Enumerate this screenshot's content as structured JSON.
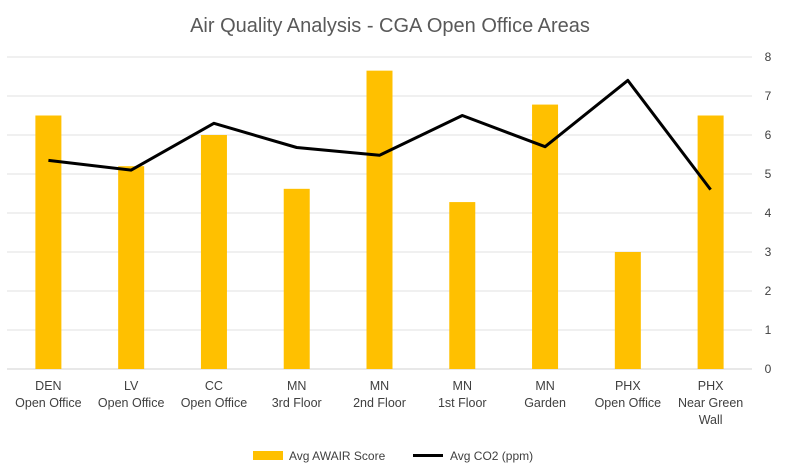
{
  "chart_data": {
    "type": "bar",
    "title": "Air Quality Analysis - CGA Open Office Areas",
    "categories": [
      [
        "DEN",
        "Open Office"
      ],
      [
        "LV",
        "Open Office"
      ],
      [
        "CC",
        "Open Office"
      ],
      [
        "MN",
        "3rd Floor"
      ],
      [
        "MN",
        "2nd Floor"
      ],
      [
        "MN",
        "1st Floor"
      ],
      [
        "MN",
        "Garden"
      ],
      [
        "PHX",
        "Open Office"
      ],
      [
        "PHX",
        "Near Green",
        "Wall"
      ]
    ],
    "series": [
      {
        "name": "Avg AWAIR Score",
        "type": "bar",
        "color": "#FFC000",
        "values": [
          6.5,
          5.2,
          6.0,
          4.62,
          7.65,
          4.28,
          6.78,
          3.0,
          6.5
        ]
      },
      {
        "name": "Avg CO2 (ppm)",
        "type": "line",
        "color": "#000000",
        "values": [
          5.35,
          5.1,
          6.3,
          5.68,
          5.48,
          6.5,
          5.7,
          7.4,
          4.6
        ]
      }
    ],
    "yaxis": {
      "side": "right",
      "min": 0,
      "max": 8,
      "ticks": [
        0,
        1,
        2,
        3,
        4,
        5,
        6,
        7,
        8
      ]
    },
    "grid": true,
    "legend": "bottom-center"
  }
}
